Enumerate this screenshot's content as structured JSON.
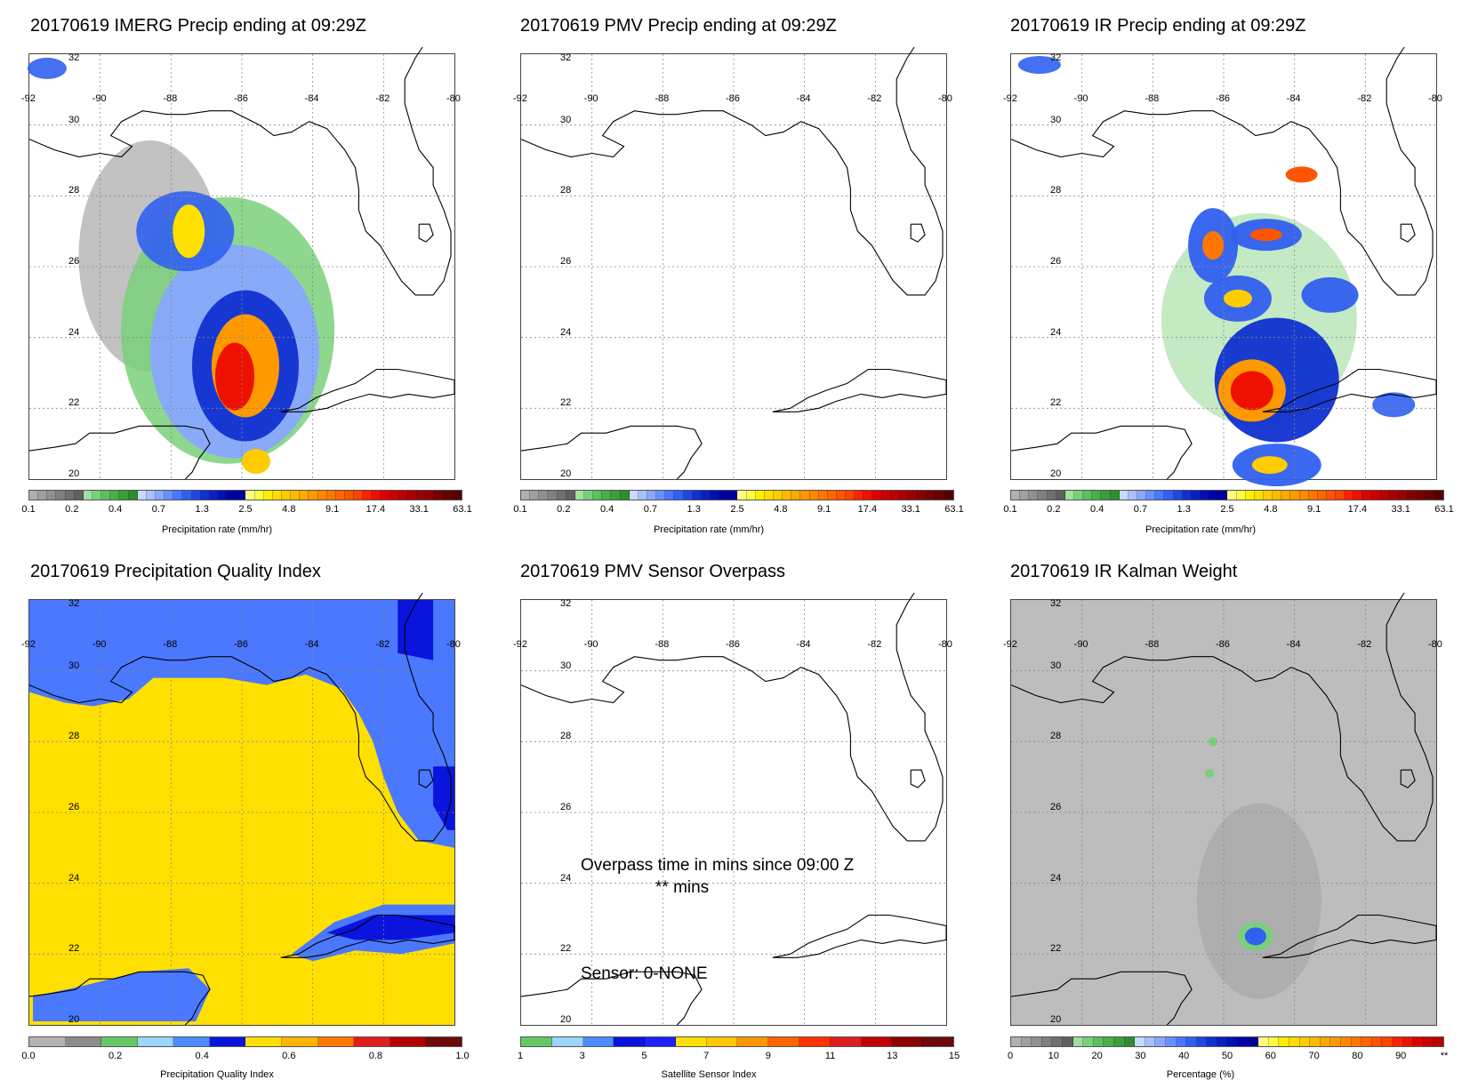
{
  "panels": [
    {
      "title": "20170619 IMERG Precip ending at 09:29Z",
      "colorbar_label": "Precipitation rate (mm/hr)"
    },
    {
      "title": "20170619 PMV Precip ending at 09:29Z",
      "colorbar_label": "Precipitation rate (mm/hr)"
    },
    {
      "title": "20170619 IR Precip ending at 09:29Z",
      "colorbar_label": "Precipitation rate (mm/hr)"
    },
    {
      "title": "20170619 Precipitation Quality Index",
      "colorbar_label": "Precipitation Quality Index"
    },
    {
      "title": "20170619 PMV Sensor Overpass",
      "colorbar_label": "Satellite Sensor Index"
    },
    {
      "title": "20170619 IR Kalman Weight",
      "colorbar_label": "Percentage (%)"
    }
  ],
  "map": {
    "lon_labels": [
      "-92",
      "-90",
      "-88",
      "-86",
      "-84",
      "-82",
      "-80"
    ],
    "lat_labels": [
      "32",
      "30",
      "28",
      "26",
      "24",
      "22",
      "20"
    ]
  },
  "colorbars": {
    "precip": {
      "ticks": [
        "0.1",
        "0.2",
        "0.4",
        "0.7",
        "1.3",
        "2.5",
        "4.8",
        "9.1",
        "17.4",
        "33.1",
        "63.1"
      ],
      "colors": [
        "#b0b0b0",
        "#a0a0a0",
        "#909090",
        "#808080",
        "#707070",
        "#606060",
        "#9ee09e",
        "#7ad07a",
        "#5cc05c",
        "#48b048",
        "#3a9e3a",
        "#2e8e2e",
        "#c8d8ff",
        "#a8c0ff",
        "#88a8ff",
        "#6890ff",
        "#4878ff",
        "#3060f0",
        "#2048e0",
        "#1030d0",
        "#0820c0",
        "#0010b0",
        "#0000a8",
        "#00009a",
        "#ffff80",
        "#ffff40",
        "#ffee00",
        "#ffdd00",
        "#ffcc00",
        "#ffbb00",
        "#ffaa00",
        "#ff9900",
        "#ff8800",
        "#ff7700",
        "#ff6600",
        "#ff5500",
        "#ff4400",
        "#ff2200",
        "#ee1100",
        "#dd0000",
        "#cc0000",
        "#bb0000",
        "#aa0000",
        "#990000",
        "#880000",
        "#770000",
        "#660000",
        "#550000"
      ]
    },
    "quality": {
      "ticks": [
        "0.0",
        "0.2",
        "0.4",
        "0.6",
        "0.8",
        "1.0"
      ],
      "colors": [
        "#b4b4b4",
        "#8c8c8c",
        "#64c864",
        "#9ad6ff",
        "#4a8cff",
        "#0a14dc",
        "#ffe000",
        "#ffb400",
        "#ff7800",
        "#e01e1e",
        "#b40000",
        "#6e0a0a"
      ]
    },
    "sensor": {
      "ticks": [
        "1",
        "3",
        "5",
        "7",
        "9",
        "11",
        "13",
        "15"
      ],
      "colors": [
        "#64c864",
        "#9ad6ff",
        "#4a8cff",
        "#0a14dc",
        "#1e1eff",
        "#ffe000",
        "#ffc800",
        "#ff9600",
        "#ff6400",
        "#ff3200",
        "#e01e1e",
        "#c00000",
        "#8c0000",
        "#6e0a0a"
      ]
    },
    "percentage": {
      "ticks": [
        "0",
        "10",
        "20",
        "30",
        "40",
        "50",
        "60",
        "70",
        "80",
        "90",
        "**"
      ],
      "colors": [
        "#b0b0b0",
        "#a0a0a0",
        "#909090",
        "#808080",
        "#707070",
        "#606060",
        "#9ee09e",
        "#7ad07a",
        "#5cc05c",
        "#48b048",
        "#3a9e3a",
        "#2e8e2e",
        "#c8d8ff",
        "#a8c0ff",
        "#88a8ff",
        "#6890ff",
        "#4878ff",
        "#3060f0",
        "#2048e0",
        "#1030d0",
        "#0820c0",
        "#0010b0",
        "#0000a8",
        "#00009a",
        "#ffff80",
        "#ffff40",
        "#ffee00",
        "#ffdd00",
        "#ffcc00",
        "#ffbb00",
        "#ffaa00",
        "#ff9900",
        "#ff8800",
        "#ff7700",
        "#ff6600",
        "#ff5500",
        "#ff4400",
        "#ff2200",
        "#ee1100",
        "#dd0000",
        "#cc0000",
        "#bb0000"
      ]
    }
  },
  "sensor_overlay": {
    "overpass_text": "Overpass time in mins since 09:00 Z",
    "mins_text": "** mins",
    "sensor_text": "Sensor:   0-NONE"
  }
}
